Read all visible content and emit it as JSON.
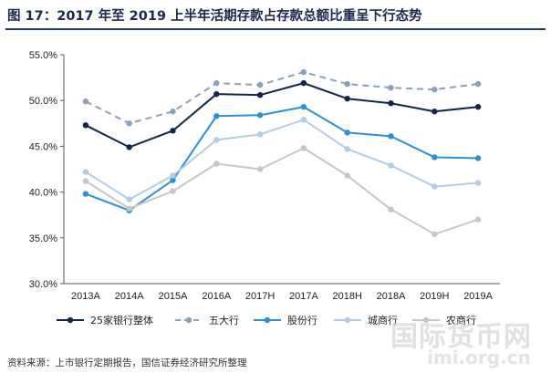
{
  "title": "图 17：2017 年至 2019 上半年活期存款占存款总额比重呈下行态势",
  "source": "资料来源：上市银行定期报告，国信证券经济研究所整理",
  "watermark": "国际货币网",
  "watermark2": "imi.org.cn",
  "chart_data": {
    "type": "line",
    "title": "",
    "xlabel": "",
    "ylabel": "",
    "categories": [
      "2013A",
      "2014A",
      "2015A",
      "2016A",
      "2017H",
      "2017A",
      "2018H",
      "2018A",
      "2019H",
      "2019A"
    ],
    "ylim": [
      30,
      55
    ],
    "yticks": [
      "30.0%",
      "35.0%",
      "40.0%",
      "45.0%",
      "50.0%",
      "55.0%"
    ],
    "ytick_values": [
      30,
      35,
      40,
      45,
      50,
      55
    ],
    "grid": false,
    "legend_position": "bottom",
    "series": [
      {
        "name": "25家银行整体",
        "values": [
          47.3,
          44.9,
          46.7,
          50.7,
          50.6,
          51.9,
          50.2,
          49.7,
          48.8,
          49.3
        ],
        "color": "#14254a",
        "dash": false
      },
      {
        "name": "五大行",
        "values": [
          49.9,
          47.5,
          48.8,
          51.9,
          51.7,
          53.1,
          51.8,
          51.4,
          51.2,
          51.8
        ],
        "color": "#8da0b8",
        "dash": true
      },
      {
        "name": "股份行",
        "values": [
          39.8,
          38.0,
          41.3,
          48.3,
          48.4,
          49.3,
          46.5,
          46.1,
          43.8,
          43.7
        ],
        "color": "#2f8fd0",
        "dash": false
      },
      {
        "name": "城商行",
        "values": [
          42.2,
          39.2,
          41.8,
          45.7,
          46.3,
          47.9,
          44.7,
          42.9,
          40.6,
          41.0
        ],
        "color": "#b4cbe6",
        "dash": false
      },
      {
        "name": "农商行",
        "values": [
          41.2,
          38.2,
          40.1,
          43.1,
          42.5,
          44.8,
          41.8,
          38.1,
          35.4,
          37.0
        ],
        "color": "#c6c6c6",
        "dash": false
      }
    ]
  }
}
